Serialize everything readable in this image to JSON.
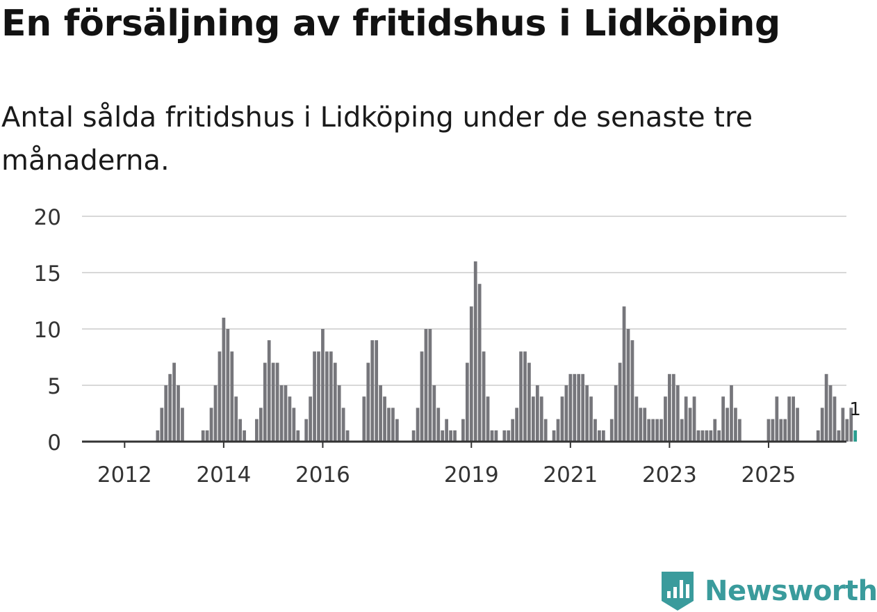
{
  "title": "En försäljning av fritidshus i Lidköping",
  "subtitle": "Antal sålda fritidshus i Lidköping under de senaste tre månaderna.",
  "brand": {
    "name": "Newsworthy",
    "color": "#3a9b9c"
  },
  "chart_data": {
    "type": "bar",
    "title": "En försäljning av fritidshus i Lidköping",
    "subtitle": "Antal sålda fritidshus i Lidköping under de senaste tre månaderna.",
    "xlabel": "",
    "ylabel": "",
    "ylim": [
      0,
      20
    ],
    "yticks": [
      0,
      5,
      10,
      15,
      20
    ],
    "x_tick_labels": [
      "2012",
      "2014",
      "2016",
      "2019",
      "2021",
      "2023",
      "2025"
    ],
    "grid": true,
    "bar_color": "#76767b",
    "highlight_color": "#2a9d8f",
    "annotation": {
      "text": "1",
      "target": "last"
    },
    "start": "2011-10",
    "values": [
      0,
      0,
      0,
      0,
      0,
      0,
      0,
      0,
      0,
      0,
      0,
      1,
      3,
      5,
      6,
      7,
      5,
      3,
      0,
      0,
      0,
      0,
      1,
      1,
      3,
      5,
      8,
      11,
      10,
      8,
      4,
      2,
      1,
      0,
      0,
      2,
      3,
      7,
      9,
      7,
      7,
      5,
      5,
      4,
      3,
      1,
      0,
      2,
      4,
      8,
      8,
      10,
      8,
      8,
      7,
      5,
      3,
      1,
      0,
      0,
      0,
      4,
      7,
      9,
      9,
      5,
      4,
      3,
      3,
      2,
      0,
      0,
      0,
      1,
      3,
      8,
      10,
      10,
      5,
      3,
      1,
      2,
      1,
      1,
      0,
      2,
      7,
      12,
      16,
      14,
      8,
      4,
      1,
      1,
      0,
      1,
      1,
      2,
      3,
      8,
      8,
      7,
      4,
      5,
      4,
      2,
      0,
      1,
      2,
      4,
      5,
      6,
      6,
      6,
      6,
      5,
      4,
      2,
      1,
      1,
      0,
      2,
      5,
      7,
      12,
      10,
      9,
      4,
      3,
      3,
      2,
      2,
      2,
      2,
      4,
      6,
      6,
      5,
      2,
      4,
      3,
      4,
      1,
      1,
      1,
      1,
      2,
      1,
      4,
      3,
      5,
      3,
      2,
      0,
      0,
      0,
      0,
      0,
      0,
      2,
      2,
      4,
      2,
      2,
      4,
      4,
      3,
      0,
      0,
      0,
      0,
      1,
      3,
      6,
      5,
      4,
      1,
      3,
      2,
      3,
      1
    ]
  }
}
